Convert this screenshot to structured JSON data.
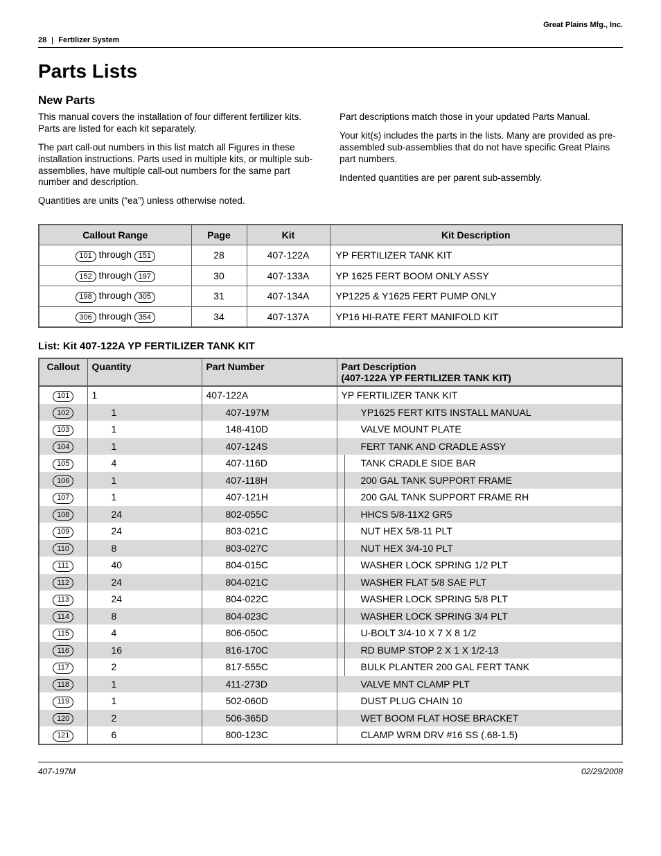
{
  "header": {
    "company": "Great Plains Mfg., Inc.",
    "page_number": "28",
    "section": "Fertilizer System"
  },
  "titles": {
    "main": "Parts Lists",
    "sub": "New Parts",
    "list_heading": "List: Kit 407-122A YP FERTILIZER TANK KIT"
  },
  "paragraphs": {
    "left1": "This manual covers the installation of four different fertilizer kits. Parts are listed for each kit separately.",
    "left2": "The part call-out numbers in this list match all Figures in these installation instructions. Parts used in multiple kits, or multiple sub-assemblies, have multiple call-out numbers for the same part number and description.",
    "left3": "Quantities are units (“ea”) unless otherwise noted.",
    "right1": "Part descriptions match those in your updated Parts Manual.",
    "right2": "Your kit(s) includes the parts in the lists. Many are provided as pre-assembled sub-assemblies that do not have specific Great Plains part numbers.",
    "right3": "Indented quantities are per parent sub-assembly."
  },
  "kit_index": {
    "headers": {
      "range": "Callout Range",
      "page": "Page",
      "kit": "Kit",
      "desc": "Kit Description"
    },
    "rows": [
      {
        "from": "101",
        "to": "151",
        "page": "28",
        "kit": "407-122A",
        "desc": "YP FERTILIZER TANK KIT"
      },
      {
        "from": "152",
        "to": "197",
        "page": "30",
        "kit": "407-133A",
        "desc": "YP 1625 FERT BOOM ONLY ASSY"
      },
      {
        "from": "198",
        "to": "305",
        "page": "31",
        "kit": "407-134A",
        "desc": "YP1225 & Y1625 FERT PUMP ONLY"
      },
      {
        "from": "306",
        "to": "354",
        "page": "34",
        "kit": "407-137A",
        "desc": "YP16 HI-RATE FERT MANIFOLD KIT"
      }
    ],
    "through": "through"
  },
  "parts_table": {
    "headers": {
      "callout": "Callout",
      "qty": "Quantity",
      "pn": "Part Number",
      "desc_line1": "Part Description",
      "desc_line2": "(407-122A YP FERTILIZER TANK KIT)"
    },
    "rows": [
      {
        "id": "101",
        "qty": "1",
        "pn": "407-122A",
        "desc": "YP FERTILIZER TANK KIT",
        "indent": 0
      },
      {
        "id": "102",
        "qty": "1",
        "pn": "407-197M",
        "desc": "YP1625 FERT KITS INSTALL MANUAL",
        "indent": 1
      },
      {
        "id": "103",
        "qty": "1",
        "pn": "148-410D",
        "desc": "VALVE MOUNT PLATE",
        "indent": 1
      },
      {
        "id": "104",
        "qty": "1",
        "pn": "407-124S",
        "desc": "FERT TANK AND CRADLE ASSY",
        "indent": 1
      },
      {
        "id": "105",
        "qty": "4",
        "pn": "407-116D",
        "desc": "TANK CRADLE SIDE BAR",
        "indent": 2
      },
      {
        "id": "106",
        "qty": "1",
        "pn": "407-118H",
        "desc": "200 GAL TANK SUPPORT FRAME",
        "indent": 2
      },
      {
        "id": "107",
        "qty": "1",
        "pn": "407-121H",
        "desc": "200 GAL TANK SUPPORT FRAME RH",
        "indent": 2
      },
      {
        "id": "108",
        "qty": "24",
        "pn": "802-055C",
        "desc": "HHCS 5/8-11X2 GR5",
        "indent": 2
      },
      {
        "id": "109",
        "qty": "24",
        "pn": "803-021C",
        "desc": "NUT HEX 5/8-11 PLT",
        "indent": 2
      },
      {
        "id": "110",
        "qty": "8",
        "pn": "803-027C",
        "desc": "NUT HEX 3/4-10 PLT",
        "indent": 2
      },
      {
        "id": "111",
        "qty": "40",
        "pn": "804-015C",
        "desc": "WASHER LOCK SPRING 1/2 PLT",
        "indent": 2
      },
      {
        "id": "112",
        "qty": "24",
        "pn": "804-021C",
        "desc": "WASHER FLAT 5/8 SAE PLT",
        "indent": 2
      },
      {
        "id": "113",
        "qty": "24",
        "pn": "804-022C",
        "desc": "WASHER LOCK SPRING 5/8 PLT",
        "indent": 2
      },
      {
        "id": "114",
        "qty": "8",
        "pn": "804-023C",
        "desc": "WASHER LOCK SPRING 3/4 PLT",
        "indent": 2
      },
      {
        "id": "115",
        "qty": "4",
        "pn": "806-050C",
        "desc": "U-BOLT 3/4-10 X 7 X 8 1/2",
        "indent": 2
      },
      {
        "id": "116",
        "qty": "16",
        "pn": "816-170C",
        "desc": "RD BUMP STOP 2 X 1 X 1/2-13",
        "indent": 2
      },
      {
        "id": "117",
        "qty": "2",
        "pn": "817-555C",
        "desc": "BULK PLANTER 200 GAL FERT TANK",
        "indent": 2
      },
      {
        "id": "118",
        "qty": "1",
        "pn": "411-273D",
        "desc": "VALVE MNT CLAMP PLT",
        "indent": 1
      },
      {
        "id": "119",
        "qty": "1",
        "pn": "502-060D",
        "desc": "DUST PLUG CHAIN 10",
        "indent": 1
      },
      {
        "id": "120",
        "qty": "2",
        "pn": "506-365D",
        "desc": "WET BOOM FLAT HOSE BRACKET",
        "indent": 1
      },
      {
        "id": "121",
        "qty": "6",
        "pn": "800-123C",
        "desc": "CLAMP WRM DRV #16 SS (.68-1.5)",
        "indent": 1
      }
    ]
  },
  "footer": {
    "left": "407-197M",
    "right": "02/29/2008"
  },
  "colors": {
    "shade": "#d9d9d9",
    "border": "#5a5a5a",
    "text": "#000000",
    "bg": "#ffffff"
  }
}
